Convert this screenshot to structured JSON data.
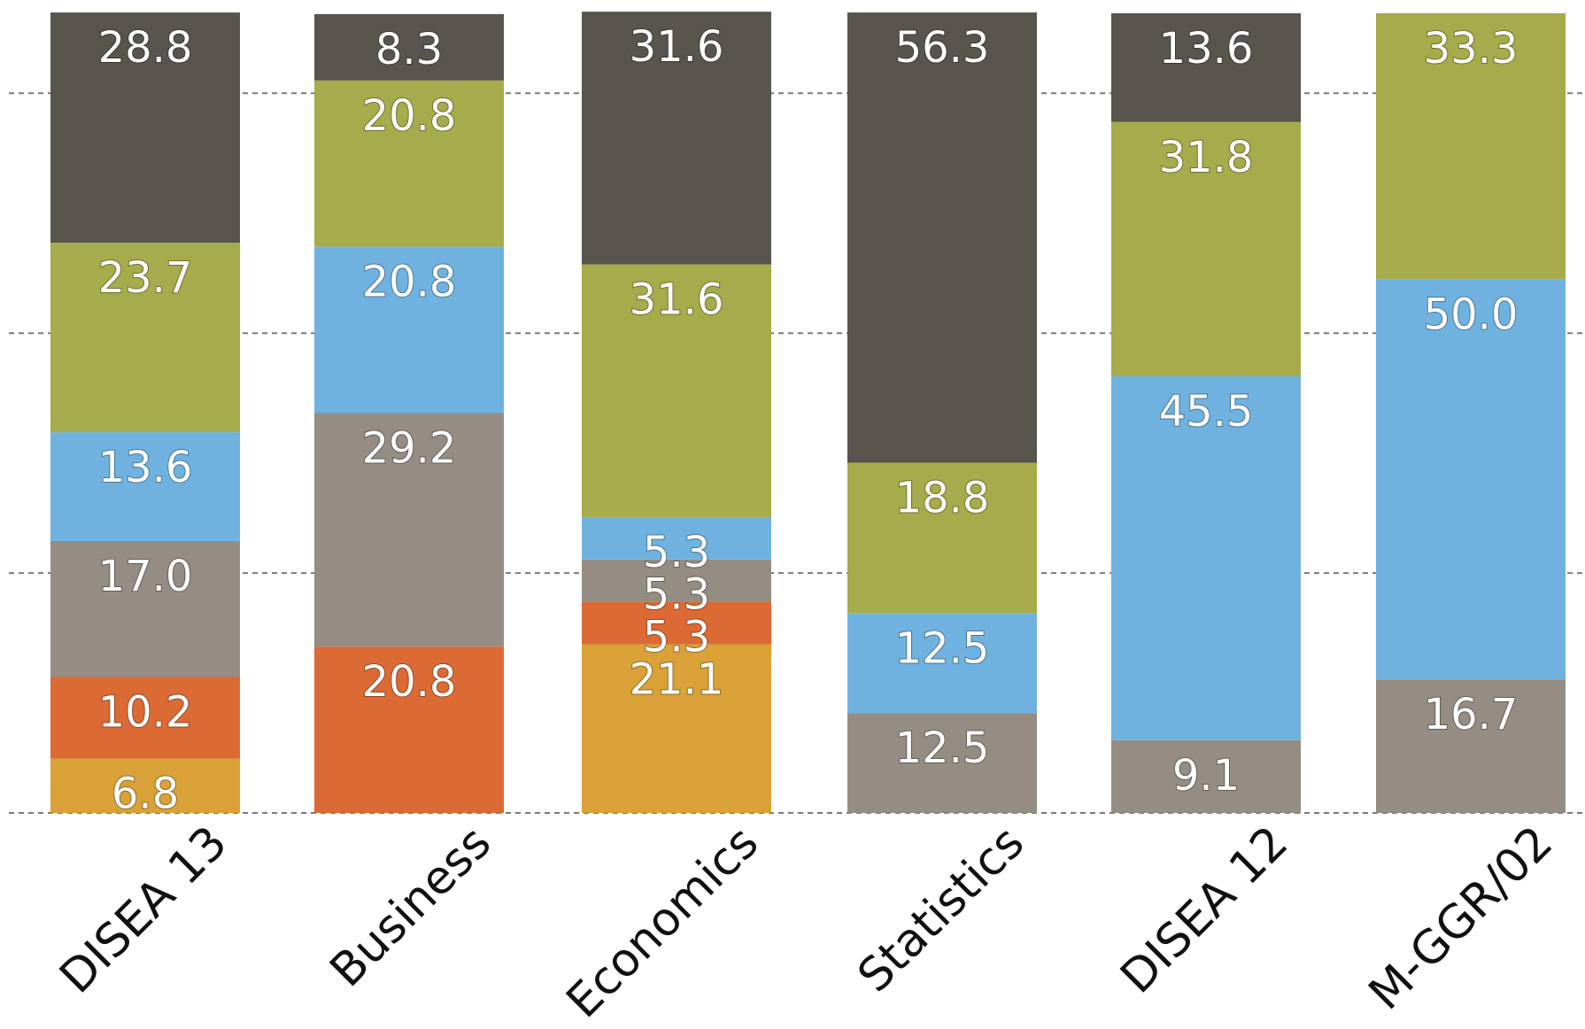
{
  "chart_data": {
    "type": "bar",
    "stacked": true,
    "normalized_to": 100,
    "ylim": [
      0,
      100
    ],
    "grid": true,
    "gridlines_at": [
      0,
      30,
      60,
      90
    ],
    "legend": "none",
    "categories": [
      "DISEA 13",
      "Business",
      "Economics",
      "Statistics",
      "DISEA 12",
      "M-GGR/02"
    ],
    "series": [
      {
        "color": "#d9a138",
        "values": [
          6.8,
          0,
          21.1,
          0,
          0,
          0
        ]
      },
      {
        "color": "#dc6a35",
        "values": [
          10.2,
          20.8,
          5.3,
          0,
          0,
          0
        ]
      },
      {
        "color": "#958d83",
        "values": [
          17.0,
          29.2,
          5.3,
          12.5,
          9.1,
          16.7
        ]
      },
      {
        "color": "#6fb2e0",
        "values": [
          13.6,
          20.8,
          5.3,
          12.5,
          45.5,
          50.0
        ]
      },
      {
        "color": "#a6ab4b",
        "values": [
          23.7,
          20.8,
          31.6,
          18.8,
          31.8,
          33.3
        ]
      },
      {
        "color": "#57554e",
        "values": [
          28.8,
          8.3,
          31.6,
          56.3,
          13.6,
          0
        ]
      }
    ],
    "value_labels": [
      [
        "6.8",
        "",
        "21.1",
        "",
        "",
        ""
      ],
      [
        "10.2",
        "20.8",
        "5.3",
        "",
        "",
        ""
      ],
      [
        "17.0",
        "29.2",
        "5.3",
        "12.5",
        "9.1",
        "16.7"
      ],
      [
        "13.6",
        "20.8",
        "5.3",
        "12.5",
        "45.5",
        "50.0"
      ],
      [
        "23.7",
        "20.8",
        "31.6",
        "18.8",
        "31.8",
        "33.3"
      ],
      [
        "28.8",
        "8.3",
        "31.6",
        "56.3",
        "13.6",
        ""
      ]
    ]
  }
}
